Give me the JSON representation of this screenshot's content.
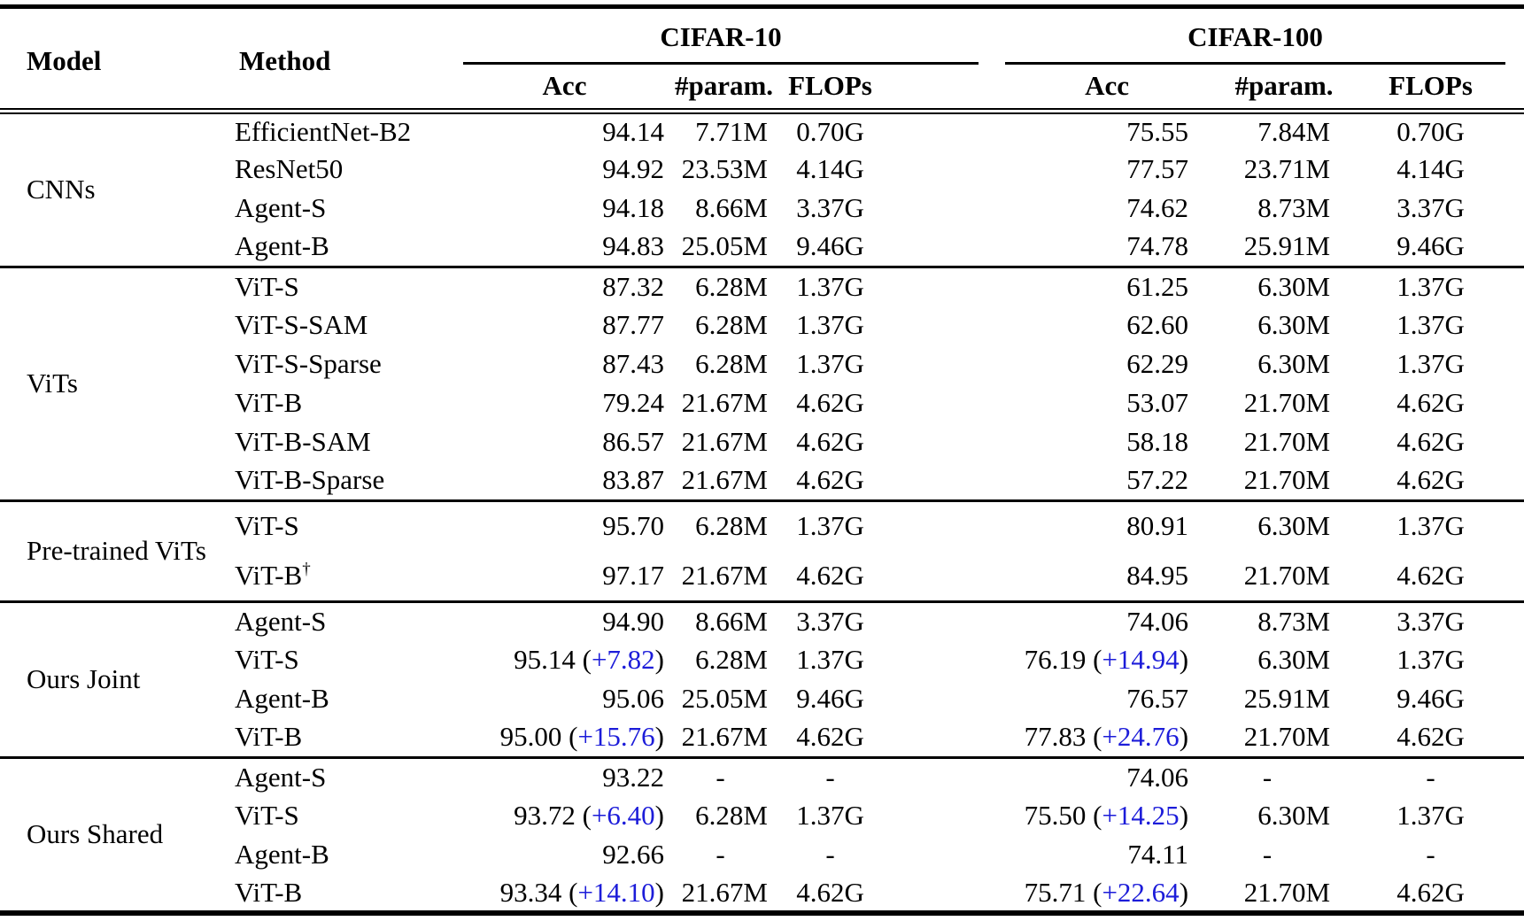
{
  "colors": {
    "delta_blue": "#1c1cd9",
    "text": "#000000"
  },
  "header": {
    "model": "Model",
    "method": "Method",
    "groups": [
      {
        "label": "CIFAR-10",
        "subcols": [
          "Acc",
          "#param.",
          "FLOPs"
        ]
      },
      {
        "label": "CIFAR-100",
        "subcols": [
          "Acc",
          "#param.",
          "FLOPs"
        ]
      }
    ]
  },
  "row_groups": [
    {
      "model": "CNNs",
      "rows": [
        {
          "method": "EfficientNet-B2",
          "values": [
            {
              "text": "94.14"
            },
            {
              "text": "7.71M"
            },
            {
              "text": "0.70G"
            },
            {
              "text": "75.55"
            },
            {
              "text": "7.84M"
            },
            {
              "text": "0.70G"
            }
          ]
        },
        {
          "method": "ResNet50",
          "values": [
            {
              "text": "94.92"
            },
            {
              "text": "23.53M"
            },
            {
              "text": "4.14G"
            },
            {
              "text": "77.57"
            },
            {
              "text": "23.71M"
            },
            {
              "text": "4.14G"
            }
          ]
        },
        {
          "method": "Agent-S",
          "values": [
            {
              "text": "94.18"
            },
            {
              "text": "8.66M"
            },
            {
              "text": "3.37G"
            },
            {
              "text": "74.62"
            },
            {
              "text": "8.73M"
            },
            {
              "text": "3.37G"
            }
          ]
        },
        {
          "method": "Agent-B",
          "values": [
            {
              "text": "94.83"
            },
            {
              "text": "25.05M"
            },
            {
              "text": "9.46G"
            },
            {
              "text": "74.78"
            },
            {
              "text": "25.91M"
            },
            {
              "text": "9.46G"
            }
          ]
        }
      ]
    },
    {
      "model": "ViTs",
      "rows": [
        {
          "method": "ViT-S",
          "values": [
            {
              "text": "87.32"
            },
            {
              "text": "6.28M"
            },
            {
              "text": "1.37G"
            },
            {
              "text": "61.25"
            },
            {
              "text": "6.30M"
            },
            {
              "text": "1.37G"
            }
          ]
        },
        {
          "method": "ViT-S-SAM",
          "values": [
            {
              "text": "87.77"
            },
            {
              "text": "6.28M"
            },
            {
              "text": "1.37G"
            },
            {
              "text": "62.60"
            },
            {
              "text": "6.30M"
            },
            {
              "text": "1.37G"
            }
          ]
        },
        {
          "method": "ViT-S-Sparse",
          "values": [
            {
              "text": "87.43"
            },
            {
              "text": "6.28M"
            },
            {
              "text": "1.37G"
            },
            {
              "text": "62.29"
            },
            {
              "text": "6.30M"
            },
            {
              "text": "1.37G"
            }
          ]
        },
        {
          "method": "ViT-B",
          "values": [
            {
              "text": "79.24"
            },
            {
              "text": "21.67M"
            },
            {
              "text": "4.62G"
            },
            {
              "text": "53.07"
            },
            {
              "text": "21.70M"
            },
            {
              "text": "4.62G"
            }
          ]
        },
        {
          "method": "ViT-B-SAM",
          "values": [
            {
              "text": "86.57"
            },
            {
              "text": "21.67M"
            },
            {
              "text": "4.62G"
            },
            {
              "text": "58.18"
            },
            {
              "text": "21.70M"
            },
            {
              "text": "4.62G"
            }
          ]
        },
        {
          "method": "ViT-B-Sparse",
          "values": [
            {
              "text": "83.87"
            },
            {
              "text": "21.67M"
            },
            {
              "text": "4.62G"
            },
            {
              "text": "57.22"
            },
            {
              "text": "21.70M"
            },
            {
              "text": "4.62G"
            }
          ]
        }
      ]
    },
    {
      "model": "Pre-trained ViTs",
      "tall": true,
      "rows": [
        {
          "method": "ViT-S",
          "values": [
            {
              "text": "95.70"
            },
            {
              "text": "6.28M"
            },
            {
              "text": "1.37G"
            },
            {
              "text": "80.91"
            },
            {
              "text": "6.30M"
            },
            {
              "text": "1.37G"
            }
          ]
        },
        {
          "method": "ViT-B",
          "sup": "†",
          "values": [
            {
              "text": "97.17"
            },
            {
              "text": "21.67M"
            },
            {
              "text": "4.62G"
            },
            {
              "text": "84.95"
            },
            {
              "text": "21.70M"
            },
            {
              "text": "4.62G"
            }
          ]
        }
      ]
    },
    {
      "model": "Ours Joint",
      "rows": [
        {
          "method": "Agent-S",
          "values": [
            {
              "text": "94.90"
            },
            {
              "text": "8.66M"
            },
            {
              "text": "3.37G"
            },
            {
              "text": "74.06"
            },
            {
              "text": "8.73M"
            },
            {
              "text": "3.37G"
            }
          ]
        },
        {
          "method": "ViT-S",
          "values": [
            {
              "text": "95.14",
              "delta": "+7.82"
            },
            {
              "text": "6.28M"
            },
            {
              "text": "1.37G"
            },
            {
              "text": "76.19",
              "delta": "+14.94"
            },
            {
              "text": "6.30M"
            },
            {
              "text": "1.37G"
            }
          ]
        },
        {
          "method": "Agent-B",
          "values": [
            {
              "text": "95.06"
            },
            {
              "text": "25.05M"
            },
            {
              "text": "9.46G"
            },
            {
              "text": "76.57"
            },
            {
              "text": "25.91M"
            },
            {
              "text": "9.46G"
            }
          ]
        },
        {
          "method": "ViT-B",
          "values": [
            {
              "text": "95.00",
              "delta": "+15.76"
            },
            {
              "text": "21.67M"
            },
            {
              "text": "4.62G"
            },
            {
              "text": "77.83",
              "delta": "+24.76"
            },
            {
              "text": "21.70M"
            },
            {
              "text": "4.62G"
            }
          ]
        }
      ]
    },
    {
      "model": "Ours Shared",
      "rows": [
        {
          "method": "Agent-S",
          "values": [
            {
              "text": "93.22"
            },
            {
              "text": "-",
              "dash": true
            },
            {
              "text": "-",
              "dash": true
            },
            {
              "text": "74.06"
            },
            {
              "text": "-",
              "dash": true
            },
            {
              "text": "-",
              "dash": true
            }
          ]
        },
        {
          "method": "ViT-S",
          "values": [
            {
              "text": "93.72",
              "delta": "+6.40"
            },
            {
              "text": "6.28M"
            },
            {
              "text": "1.37G"
            },
            {
              "text": "75.50",
              "delta": "+14.25"
            },
            {
              "text": "6.30M"
            },
            {
              "text": "1.37G"
            }
          ]
        },
        {
          "method": "Agent-B",
          "values": [
            {
              "text": "92.66"
            },
            {
              "text": "-",
              "dash": true
            },
            {
              "text": "-",
              "dash": true
            },
            {
              "text": "74.11"
            },
            {
              "text": "-",
              "dash": true
            },
            {
              "text": "-",
              "dash": true
            }
          ]
        },
        {
          "method": "ViT-B",
          "values": [
            {
              "text": "93.34",
              "delta": "+14.10"
            },
            {
              "text": "21.67M"
            },
            {
              "text": "4.62G"
            },
            {
              "text": "75.71",
              "delta": "+22.64"
            },
            {
              "text": "21.70M"
            },
            {
              "text": "4.62G"
            }
          ]
        }
      ]
    }
  ]
}
